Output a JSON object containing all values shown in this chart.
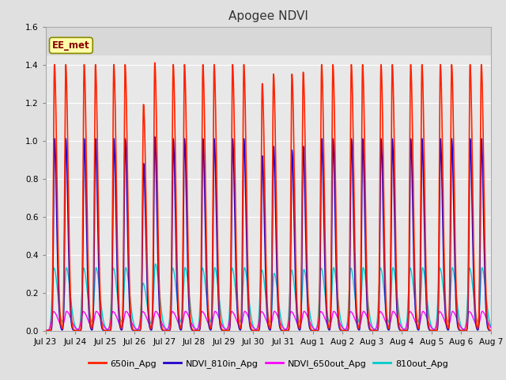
{
  "title": "Apogee NDVI",
  "ylim": [
    0.0,
    1.6
  ],
  "yticks": [
    0.0,
    0.2,
    0.4,
    0.6,
    0.8,
    1.0,
    1.2,
    1.4,
    1.6
  ],
  "x_labels": [
    "Jul 23",
    "Jul 24",
    "Jul 25",
    "Jul 26",
    "Jul 27",
    "Jul 28",
    "Jul 29",
    "Jul 30",
    "Jul 31",
    "Aug 1",
    "Aug 2",
    "Aug 3",
    "Aug 4",
    "Aug 5",
    "Aug 6",
    "Aug 7"
  ],
  "series": {
    "650in_Apg": {
      "color": "#ff2200",
      "lw": 1.2
    },
    "NDVI_810in_Apg": {
      "color": "#2200cc",
      "lw": 1.2
    },
    "NDVI_650out_Apg": {
      "color": "#ff00ff",
      "lw": 1.0
    },
    "810out_Apg": {
      "color": "#00cccc",
      "lw": 1.0
    }
  },
  "annotation_text": "EE_met",
  "annotation_fg": "#880000",
  "annotation_bg": "#ffffaa",
  "annotation_edge": "#888800",
  "figure_bg": "#e0e0e0",
  "plot_bg": "#e8e8e8",
  "shaded_bg": "#d8d8d8",
  "grid_color": "#ffffff",
  "n_days": 15,
  "legend_entries": [
    "650in_Apg",
    "NDVI_810in_Apg",
    "NDVI_650out_Apg",
    "810out_Apg"
  ],
  "legend_colors": [
    "#ff2200",
    "#2200cc",
    "#ff00ff",
    "#00cccc"
  ]
}
